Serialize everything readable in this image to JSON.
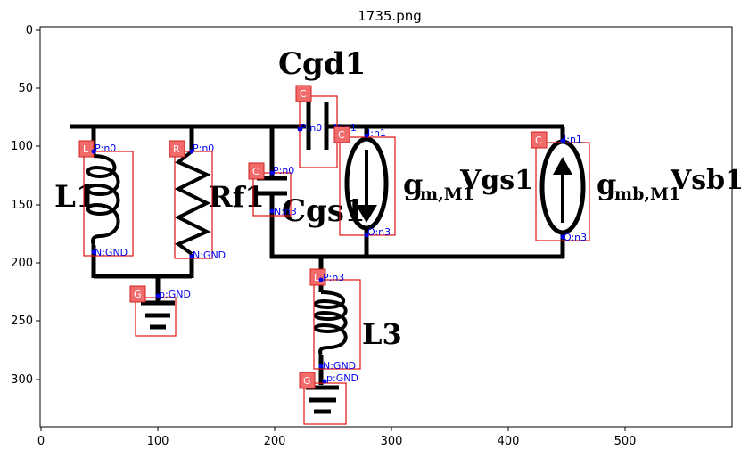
{
  "title": "1735.png",
  "x_ticks": [
    "0",
    "100",
    "200",
    "300",
    "400",
    "500"
  ],
  "y_ticks": [
    "0",
    "50",
    "100",
    "150",
    "200",
    "250",
    "300"
  ],
  "labels": {
    "cgd1": "Cgd1",
    "l1": "L1",
    "rf1": "Rf1",
    "cgs1": "Cgs1",
    "gm_main": "g",
    "gm_sub": "m,M1",
    "gm_rest": "Vgs1",
    "gmb_main": "g",
    "gmb_sub": "mb,M1",
    "gmb_rest": "Vsb1",
    "l3": "L3"
  },
  "components": [
    {
      "id": "L1-ind",
      "tag": "L",
      "pins": [
        "P:n0",
        "N:GND"
      ]
    },
    {
      "id": "Rf1-res",
      "tag": "R",
      "pins": [
        "P:n0",
        "N:GND"
      ]
    },
    {
      "id": "Cgs1-cap",
      "tag": "C",
      "pins": [
        "P:n0",
        "N:n3"
      ]
    },
    {
      "id": "Cgd1-cap",
      "tag": "C",
      "pins": [
        "P:n0",
        "N:n1"
      ]
    },
    {
      "id": "gm-src",
      "tag": "C",
      "pins": [
        "I:n1",
        "O:n3"
      ]
    },
    {
      "id": "gmb-src",
      "tag": "C",
      "pins": [
        "I:n1",
        "O:n3"
      ]
    },
    {
      "id": "L3-ind",
      "tag": "L",
      "pins": [
        "P:n3",
        "N:GND"
      ]
    },
    {
      "id": "gnd1",
      "tag": "G",
      "pins": [
        "p:GND"
      ]
    },
    {
      "id": "gnd2",
      "tag": "G",
      "pins": [
        "p:GND"
      ]
    }
  ]
}
